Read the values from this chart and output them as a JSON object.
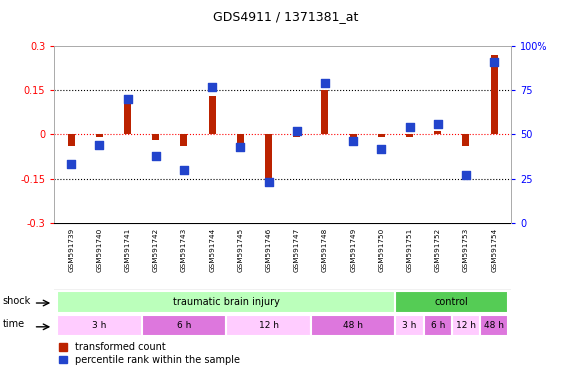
{
  "title": "GDS4911 / 1371381_at",
  "samples": [
    "GSM591739",
    "GSM591740",
    "GSM591741",
    "GSM591742",
    "GSM591743",
    "GSM591744",
    "GSM591745",
    "GSM591746",
    "GSM591747",
    "GSM591748",
    "GSM591749",
    "GSM591750",
    "GSM591751",
    "GSM591752",
    "GSM591753",
    "GSM591754"
  ],
  "red_values": [
    -0.04,
    -0.01,
    0.12,
    -0.02,
    -0.04,
    0.13,
    -0.03,
    -0.17,
    -0.01,
    0.15,
    -0.01,
    -0.01,
    -0.01,
    0.01,
    -0.04,
    0.27
  ],
  "blue_values_pct": [
    33,
    44,
    70,
    38,
    30,
    77,
    43,
    23,
    52,
    79,
    46,
    42,
    54,
    56,
    27,
    91
  ],
  "ylim_left": [
    -0.3,
    0.3
  ],
  "ylim_right": [
    0,
    100
  ],
  "hlines": [
    0.15,
    -0.15
  ],
  "shock_groups": [
    {
      "label": "traumatic brain injury",
      "start": 0,
      "end": 11,
      "color": "#bbffbb"
    },
    {
      "label": "control",
      "start": 12,
      "end": 15,
      "color": "#55cc55"
    }
  ],
  "time_groups": [
    {
      "label": "3 h",
      "start": 0,
      "end": 2,
      "color": "#ffccff"
    },
    {
      "label": "6 h",
      "start": 3,
      "end": 5,
      "color": "#dd77dd"
    },
    {
      "label": "12 h",
      "start": 6,
      "end": 8,
      "color": "#ffccff"
    },
    {
      "label": "48 h",
      "start": 9,
      "end": 11,
      "color": "#dd77dd"
    },
    {
      "label": "3 h",
      "start": 12,
      "end": 12,
      "color": "#ffccff"
    },
    {
      "label": "6 h",
      "start": 13,
      "end": 13,
      "color": "#dd77dd"
    },
    {
      "label": "12 h",
      "start": 14,
      "end": 14,
      "color": "#ffccff"
    },
    {
      "label": "48 h",
      "start": 15,
      "end": 15,
      "color": "#dd77dd"
    }
  ],
  "bar_color_red": "#bb2200",
  "bar_color_blue": "#2244cc",
  "legend_red": "transformed count",
  "legend_blue": "percentile rank within the sample",
  "shock_label": "shock",
  "time_label": "time",
  "bg_color": "#ffffff",
  "sample_bg": "#cccccc",
  "left_yticks": [
    -0.3,
    -0.15,
    0,
    0.15,
    0.3
  ],
  "left_yticklabels": [
    "-0.3",
    "-0.15",
    "0",
    "0.15",
    "0.3"
  ],
  "right_yticks": [
    0,
    25,
    50,
    75,
    100
  ],
  "right_yticklabels": [
    "0",
    "25",
    "50",
    "75",
    "100%"
  ]
}
